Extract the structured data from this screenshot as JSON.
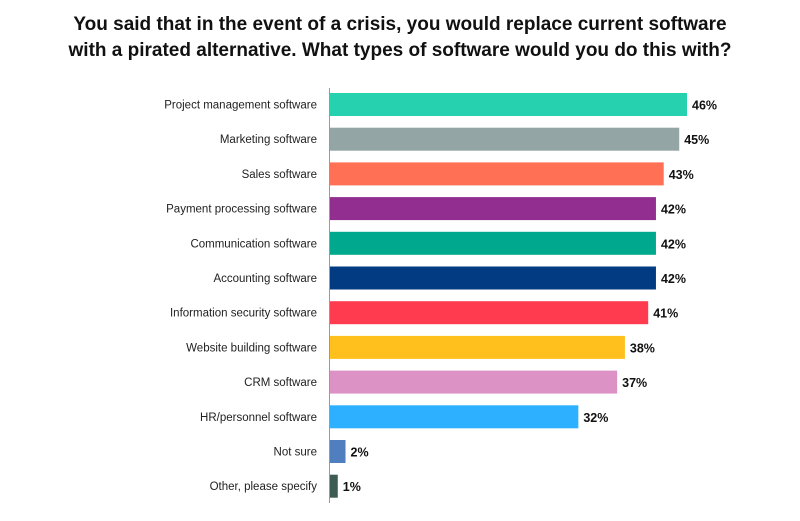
{
  "chart_data": {
    "type": "bar",
    "orientation": "horizontal",
    "title_lines": [
      "You said that in the event of a crisis, you would replace current software",
      "with a pirated alternative. What types of software would you do this with?"
    ],
    "categories": [
      "Project management software",
      "Marketing software",
      "Sales software",
      "Payment processing software",
      "Communication software",
      "Accounting software",
      "Information security software",
      "Website building software",
      "CRM software",
      "HR/personnel software",
      "Not sure",
      "Other, please specify"
    ],
    "values": [
      46,
      45,
      43,
      42,
      42,
      42,
      41,
      38,
      37,
      32,
      2,
      1
    ],
    "value_labels": [
      "46%",
      "45%",
      "43%",
      "42%",
      "42%",
      "42%",
      "41%",
      "38%",
      "37%",
      "32%",
      "2%",
      "1%"
    ],
    "colors": [
      "#26d1b0",
      "#94a5a5",
      "#ff7055",
      "#922e8f",
      "#00a88e",
      "#023b82",
      "#ff3b50",
      "#ffc01e",
      "#dd92c6",
      "#2db0ff",
      "#4f7fbf",
      "#3d5c56"
    ],
    "xlim": [
      0,
      46
    ],
    "grid": false,
    "legend": "none",
    "unit": "%"
  }
}
